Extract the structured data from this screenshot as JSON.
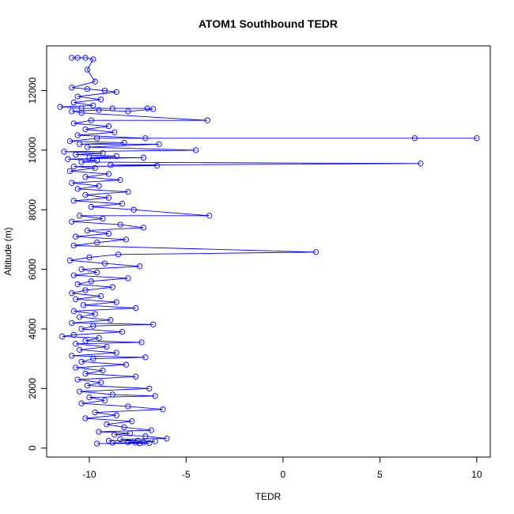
{
  "chart_data": {
    "type": "line",
    "title": "ATOM1 Southbound TEDR",
    "xlabel": "TEDR",
    "ylabel": "Altitude (m)",
    "xlim": [
      -12.2,
      10.7
    ],
    "ylim": [
      -300,
      13500
    ],
    "xticks": [
      -10,
      -5,
      0,
      5,
      10
    ],
    "yticks": [
      0,
      2000,
      4000,
      6000,
      8000,
      10000,
      12000
    ],
    "grid": false,
    "legend": "none",
    "line_color": "#0000ff",
    "marker": "open-circle",
    "series": [
      {
        "values": [
          [
            -10.9,
            13100
          ],
          [
            -10.6,
            13100
          ],
          [
            -10.2,
            13100
          ],
          [
            -9.8,
            13050
          ],
          [
            -10.1,
            12700
          ],
          [
            -9.7,
            12300
          ],
          [
            -10.9,
            12100
          ],
          [
            -10.1,
            12050
          ],
          [
            -9.2,
            12000
          ],
          [
            -8.6,
            11950
          ],
          [
            -10.6,
            11800
          ],
          [
            -9.4,
            11700
          ],
          [
            -10.8,
            11600
          ],
          [
            -9.8,
            11500
          ],
          [
            -11.5,
            11450
          ],
          [
            -10.4,
            11400
          ],
          [
            -8.8,
            11400
          ],
          [
            -7.0,
            11400
          ],
          [
            -6.7,
            11380
          ],
          [
            -8.0,
            11300
          ],
          [
            -9.5,
            11350
          ],
          [
            -10.9,
            11300
          ],
          [
            -10.4,
            11250
          ],
          [
            -3.9,
            11000
          ],
          [
            -9.9,
            11000
          ],
          [
            -10.8,
            10900
          ],
          [
            -9.0,
            10800
          ],
          [
            -10.2,
            10700
          ],
          [
            -8.7,
            10600
          ],
          [
            -10.6,
            10500
          ],
          [
            -7.1,
            10400
          ],
          [
            6.8,
            10400
          ],
          [
            10.0,
            10400
          ],
          [
            -9.6,
            10400
          ],
          [
            -11.0,
            10300
          ],
          [
            -8.2,
            10250
          ],
          [
            -10.5,
            10200
          ],
          [
            -6.4,
            10200
          ],
          [
            -10.1,
            10100
          ],
          [
            -4.5,
            10000
          ],
          [
            -11.3,
            9950
          ],
          [
            -9.3,
            9900
          ],
          [
            -10.7,
            9850
          ],
          [
            -8.6,
            9800
          ],
          [
            -10.0,
            9750
          ],
          [
            -7.2,
            9750
          ],
          [
            -11.1,
            9700
          ],
          [
            -9.6,
            9650
          ],
          [
            -10.4,
            9600
          ],
          [
            7.1,
            9550
          ],
          [
            -8.9,
            9500
          ],
          [
            -6.5,
            9480
          ],
          [
            -10.8,
            9450
          ],
          [
            -9.7,
            9400
          ],
          [
            -11.0,
            9300
          ],
          [
            -9.0,
            9200
          ],
          [
            -10.2,
            9100
          ],
          [
            -8.4,
            9000
          ],
          [
            -10.9,
            8900
          ],
          [
            -9.5,
            8800
          ],
          [
            -10.6,
            8700
          ],
          [
            -8.0,
            8600
          ],
          [
            -10.2,
            8500
          ],
          [
            -9.0,
            8400
          ],
          [
            -10.8,
            8300
          ],
          [
            -8.3,
            8200
          ],
          [
            -9.9,
            8100
          ],
          [
            -7.7,
            8000
          ],
          [
            -3.8,
            7800
          ],
          [
            -10.5,
            7800
          ],
          [
            -9.3,
            7700
          ],
          [
            -10.9,
            7600
          ],
          [
            -8.4,
            7500
          ],
          [
            -7.2,
            7400
          ],
          [
            -10.1,
            7300
          ],
          [
            -9.0,
            7200
          ],
          [
            -10.7,
            7100
          ],
          [
            -8.1,
            7000
          ],
          [
            -9.6,
            6900
          ],
          [
            -10.8,
            6800
          ],
          [
            1.7,
            6580
          ],
          [
            -8.5,
            6500
          ],
          [
            -10.0,
            6400
          ],
          [
            -11.0,
            6300
          ],
          [
            -9.2,
            6200
          ],
          [
            -7.4,
            6100
          ],
          [
            -10.4,
            6000
          ],
          [
            -9.6,
            5900
          ],
          [
            -10.8,
            5800
          ],
          [
            -8.0,
            5700
          ],
          [
            -9.9,
            5600
          ],
          [
            -10.6,
            5500
          ],
          [
            -8.8,
            5400
          ],
          [
            -10.2,
            5300
          ],
          [
            -10.9,
            5200
          ],
          [
            -9.4,
            5100
          ],
          [
            -10.7,
            5000
          ],
          [
            -8.6,
            4900
          ],
          [
            -10.3,
            4800
          ],
          [
            -7.6,
            4700
          ],
          [
            -10.8,
            4600
          ],
          [
            -9.7,
            4500
          ],
          [
            -10.5,
            4400
          ],
          [
            -8.9,
            4300
          ],
          [
            -10.9,
            4200
          ],
          [
            -6.7,
            4150
          ],
          [
            -9.8,
            4100
          ],
          [
            -10.4,
            4000
          ],
          [
            -8.3,
            3900
          ],
          [
            -10.8,
            3800
          ],
          [
            -11.4,
            3750
          ],
          [
            -9.5,
            3700
          ],
          [
            -10.2,
            3600
          ],
          [
            -7.3,
            3550
          ],
          [
            -10.7,
            3500
          ],
          [
            -9.1,
            3400
          ],
          [
            -10.5,
            3300
          ],
          [
            -8.6,
            3200
          ],
          [
            -10.9,
            3100
          ],
          [
            -7.1,
            3050
          ],
          [
            -9.8,
            3000
          ],
          [
            -10.4,
            2900
          ],
          [
            -8.1,
            2800
          ],
          [
            -10.7,
            2700
          ],
          [
            -9.3,
            2600
          ],
          [
            -10.2,
            2500
          ],
          [
            -7.6,
            2400
          ],
          [
            -10.6,
            2300
          ],
          [
            -9.4,
            2200
          ],
          [
            -10.1,
            2100
          ],
          [
            -6.9,
            2000
          ],
          [
            -10.5,
            1900
          ],
          [
            -8.8,
            1800
          ],
          [
            -6.6,
            1750
          ],
          [
            -10.0,
            1700
          ],
          [
            -9.2,
            1600
          ],
          [
            -10.4,
            1500
          ],
          [
            -8.0,
            1400
          ],
          [
            -6.2,
            1300
          ],
          [
            -9.7,
            1200
          ],
          [
            -8.6,
            1100
          ],
          [
            -10.2,
            1000
          ],
          [
            -7.8,
            900
          ],
          [
            -9.1,
            800
          ],
          [
            -8.2,
            700
          ],
          [
            -6.8,
            600
          ],
          [
            -9.5,
            550
          ],
          [
            -7.9,
            500
          ],
          [
            -8.7,
            450
          ],
          [
            -7.1,
            400
          ],
          [
            -6.0,
            320
          ],
          [
            -8.4,
            300
          ],
          [
            -7.5,
            250
          ],
          [
            -9.0,
            250
          ],
          [
            -6.6,
            230
          ],
          [
            -7.2,
            200
          ],
          [
            -8.0,
            200
          ],
          [
            -7.6,
            180
          ],
          [
            -8.8,
            180
          ],
          [
            -6.9,
            170
          ],
          [
            -7.4,
            160
          ],
          [
            -9.6,
            150
          ]
        ]
      }
    ]
  }
}
